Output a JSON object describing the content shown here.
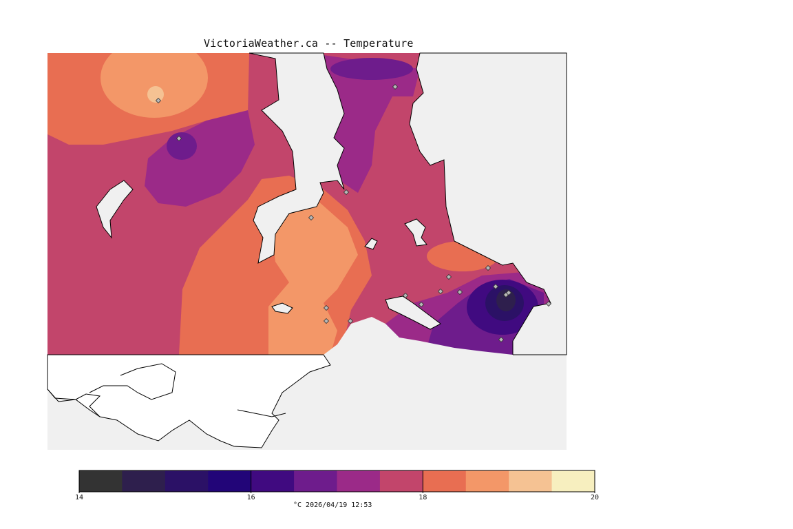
{
  "title": "VictoriaWeather.ca -- Temperature",
  "legend": {
    "caption": "°C  2026/04/19 12:53",
    "ticks": [
      {
        "value": 14,
        "label": "14"
      },
      {
        "value": 16,
        "label": "16"
      },
      {
        "value": 18,
        "label": "18"
      },
      {
        "value": 20,
        "label": "20"
      }
    ],
    "min": 14,
    "max": 20,
    "colors": [
      "#333333",
      "#2e1f4d",
      "#2b1166",
      "#220578",
      "#400a80",
      "#6e1c8c",
      "#9b2a88",
      "#c2456b",
      "#e86e52",
      "#f39768",
      "#f5c293",
      "#f7efbf"
    ]
  },
  "colors": {
    "ocean": "#f0f0f0",
    "land_unshaded": "#ffffff",
    "coast": "#000000",
    "station": "#b8b8b8"
  },
  "stations_count": 19
}
